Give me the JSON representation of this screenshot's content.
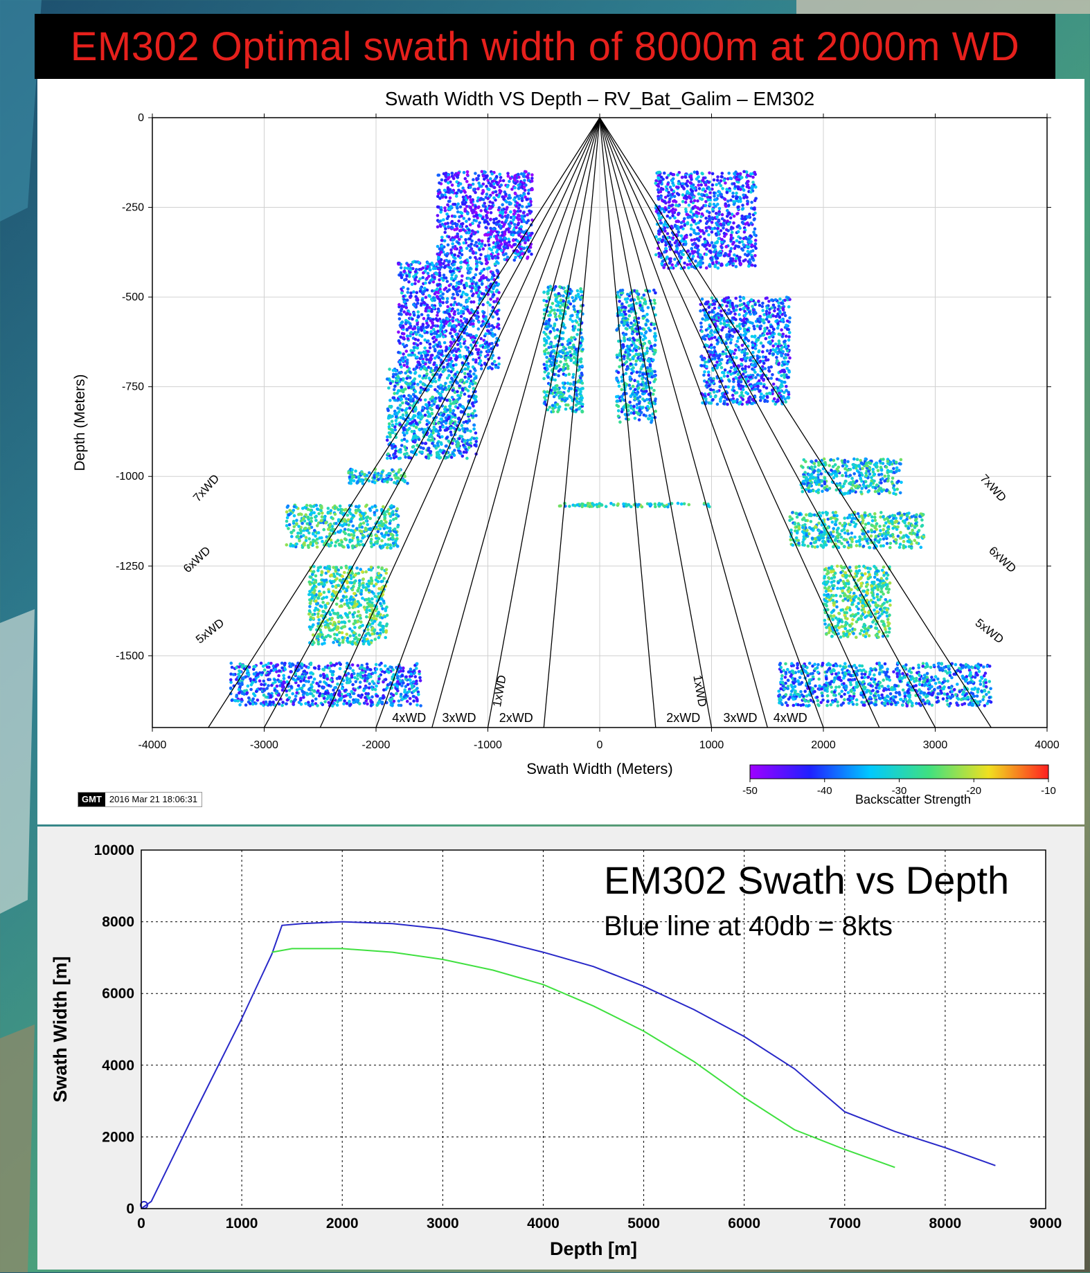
{
  "banner": {
    "title": "EM302 Optimal swath width of 8000m at 2000m WD"
  },
  "colors": {
    "banner_bg": "#000000",
    "banner_text": "#e6201c",
    "blue_line": "#2828c8",
    "green_line": "#3fe03f"
  },
  "stamp": {
    "logo": "GMT",
    "date": "2016 Mar 21 18:06:31"
  },
  "chart_data": [
    {
      "type": "scatter",
      "title": "Swath Width VS Depth – RV_Bat_Galim – EM302",
      "xlabel": "Swath Width (Meters)",
      "ylabel": "Depth (Meters)",
      "xlim": [
        -4000,
        4000
      ],
      "ylim": [
        -1700,
        0
      ],
      "x_ticks": [
        -4000,
        -3000,
        -2000,
        -1000,
        0,
        1000,
        2000,
        3000,
        4000
      ],
      "y_ticks": [
        0,
        -250,
        -500,
        -750,
        -1000,
        -1250,
        -1500
      ],
      "grid": true,
      "guide_lines": [
        "1xWD",
        "2xWD",
        "3xWD",
        "4xWD",
        "5xWD",
        "6xWD",
        "7xWD"
      ],
      "colorbar": {
        "label": "Backscatter Strength",
        "range": [
          -50,
          -10
        ],
        "ticks": [
          -50,
          -40,
          -30,
          -20,
          -10
        ],
        "colormap": [
          "#a000ff",
          "#2020ff",
          "#00c8ff",
          "#40e080",
          "#f0e020",
          "#ff2020"
        ]
      },
      "clusters": [
        {
          "x": [
            -1450,
            -600
          ],
          "y": [
            -150,
            -400
          ],
          "backscatter": -42
        },
        {
          "x": [
            -1800,
            -900
          ],
          "y": [
            -400,
            -700
          ],
          "backscatter": -40
        },
        {
          "x": [
            -1900,
            -1100
          ],
          "y": [
            -700,
            -950
          ],
          "backscatter": -35
        },
        {
          "x": [
            -2250,
            -1700
          ],
          "y": [
            -980,
            -1020
          ],
          "backscatter": -32
        },
        {
          "x": [
            -2800,
            -1800
          ],
          "y": [
            -1080,
            -1200
          ],
          "backscatter": -30
        },
        {
          "x": [
            -2600,
            -1900
          ],
          "y": [
            -1250,
            -1470
          ],
          "backscatter": -28
        },
        {
          "x": [
            -3300,
            -1600
          ],
          "y": [
            -1520,
            -1640
          ],
          "backscatter": -38
        },
        {
          "x": [
            -500,
            -150
          ],
          "y": [
            -470,
            -820
          ],
          "backscatter": -33
        },
        {
          "x": [
            150,
            500
          ],
          "y": [
            -480,
            -850
          ],
          "backscatter": -34
        },
        {
          "x": [
            -400,
            1000
          ],
          "y": [
            -1075,
            -1085
          ],
          "backscatter": -30
        },
        {
          "x": [
            500,
            1400
          ],
          "y": [
            -150,
            -420
          ],
          "backscatter": -40
        },
        {
          "x": [
            900,
            1700
          ],
          "y": [
            -500,
            -800
          ],
          "backscatter": -38
        },
        {
          "x": [
            1800,
            2700
          ],
          "y": [
            -950,
            -1050
          ],
          "backscatter": -32
        },
        {
          "x": [
            1700,
            2900
          ],
          "y": [
            -1100,
            -1200
          ],
          "backscatter": -30
        },
        {
          "x": [
            2000,
            2600
          ],
          "y": [
            -1250,
            -1450
          ],
          "backscatter": -28
        },
        {
          "x": [
            1600,
            3500
          ],
          "y": [
            -1520,
            -1640
          ],
          "backscatter": -36
        }
      ]
    },
    {
      "type": "line",
      "title": "EM302 Swath vs Depth",
      "subtitle": "Blue line at 40db = 8kts",
      "xlabel": "Depth [m]",
      "ylabel": "Swath Width [m]",
      "xlim": [
        0,
        9000
      ],
      "ylim": [
        0,
        10000
      ],
      "x_ticks": [
        0,
        1000,
        2000,
        3000,
        4000,
        5000,
        6000,
        7000,
        8000,
        9000
      ],
      "y_ticks": [
        0,
        2000,
        4000,
        6000,
        8000,
        10000
      ],
      "grid": "dotted",
      "series": [
        {
          "color": "#2828c8",
          "x": [
            0,
            100,
            500,
            1000,
            1300,
            1400,
            1600,
            2000,
            2500,
            3000,
            3500,
            4000,
            4500,
            5000,
            5500,
            6000,
            6500,
            7000,
            7500,
            8000,
            8500
          ],
          "y": [
            0,
            200,
            2500,
            5300,
            7100,
            7900,
            7950,
            8000,
            7950,
            7800,
            7500,
            7150,
            6750,
            6200,
            5550,
            4800,
            3900,
            2700,
            2150,
            1700,
            1200
          ]
        },
        {
          "color": "#3fe03f",
          "x": [
            1300,
            1500,
            2000,
            2500,
            3000,
            3500,
            4000,
            4500,
            5000,
            5500,
            6000,
            6500,
            7000,
            7500
          ],
          "y": [
            7150,
            7250,
            7250,
            7150,
            6950,
            6650,
            6250,
            5650,
            4950,
            4100,
            3100,
            2200,
            1650,
            1150
          ]
        }
      ]
    }
  ]
}
